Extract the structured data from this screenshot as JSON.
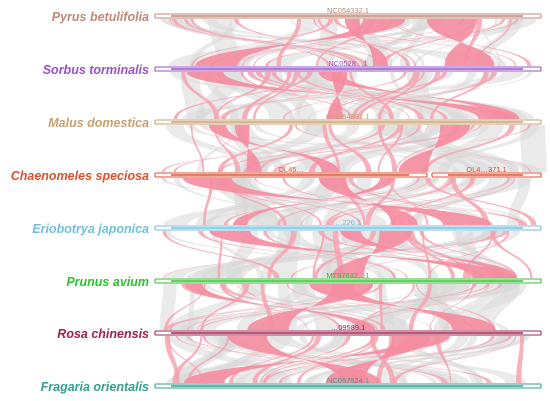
{
  "tracks": [
    {
      "species": "Pyrus betulifolia",
      "color": "#c08878",
      "segments": [
        {
          "label": "NC054332.1"
        }
      ]
    },
    {
      "species": "Sorbus torminalis",
      "color": "#9a50c8",
      "segments": [
        {
          "label": "NC0528…1"
        }
      ]
    },
    {
      "species": "Malus domestica",
      "color": "#c8a070",
      "segments": [
        {
          "label": "MN984891.1"
        }
      ]
    },
    {
      "species": "Chaenomeles speciosa",
      "color": "#e05030",
      "segments": [
        {
          "label": "OL45…"
        },
        {
          "label": "OL4…371.1"
        }
      ]
    },
    {
      "species": "Eriobotrya japonica",
      "color": "#70c0e0",
      "segments": [
        {
          "label": "…226.1"
        }
      ]
    },
    {
      "species": "Prunus avium",
      "color": "#30c030",
      "segments": [
        {
          "label": "MT97632…1"
        }
      ]
    },
    {
      "species": "Rosa chinensis",
      "color": "#a02050",
      "segments": [
        {
          "label": "…09589.1"
        }
      ]
    },
    {
      "species": "Fragaria orientalis",
      "color": "#30a090",
      "segments": [
        {
          "label": "NC057524.1"
        }
      ]
    }
  ],
  "colors": {
    "collinear": "#f4a3b0",
    "collinear_strong": "#f58ca0",
    "background_link": "#d8d8d8",
    "bar_fill": "#ffffff"
  }
}
